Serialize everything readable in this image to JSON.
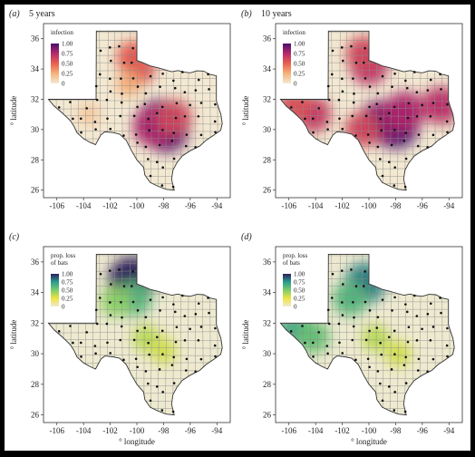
{
  "figure": {
    "background": "#000000",
    "panel_bg": "#ffffff",
    "plot_bg": "#f2f2f2"
  },
  "chart_data": [
    {
      "type": "heatmap",
      "panel": "a",
      "title": "5 years",
      "xlabel": "",
      "ylabel": "° latitude",
      "xticks": [
        "-106",
        "-104",
        "-102",
        "-100",
        "-98",
        "-96",
        "-94"
      ],
      "yticks": [
        "26",
        "28",
        "30",
        "32",
        "34",
        "36"
      ],
      "xlim": [
        -107,
        -93
      ],
      "ylim": [
        25.5,
        37
      ],
      "legend": {
        "title": "infection",
        "ticks": [
          "1.00",
          "0.75",
          "0.50",
          "0.25",
          "0"
        ],
        "placement": "top-left"
      },
      "colors": [
        "#f3e9d2",
        "#f6b27a",
        "#e8604e",
        "#b5296c",
        "#4a0f6b"
      ],
      "hotspots": [
        {
          "lon": -100.0,
          "lat": 34.4,
          "value": 0.55
        },
        {
          "lon": -99.9,
          "lat": 34.0,
          "value": 0.55
        },
        {
          "lon": -100.3,
          "lat": 34.8,
          "value": 0.5
        },
        {
          "lon": -100.6,
          "lat": 33.0,
          "value": 0.25
        },
        {
          "lon": -98.3,
          "lat": 30.4,
          "value": 1.0
        },
        {
          "lon": -97.8,
          "lat": 30.0,
          "value": 0.95
        },
        {
          "lon": -98.8,
          "lat": 30.2,
          "value": 0.75
        },
        {
          "lon": -97.2,
          "lat": 30.8,
          "value": 0.6
        },
        {
          "lon": -103.6,
          "lat": 31.0,
          "value": 0.15
        }
      ]
    },
    {
      "type": "heatmap",
      "panel": "b",
      "title": "10 years",
      "xlabel": "",
      "ylabel": "° latitude",
      "xticks": [
        "-106",
        "-104",
        "-102",
        "-100",
        "-98",
        "-96",
        "-94"
      ],
      "yticks": [
        "26",
        "28",
        "30",
        "32",
        "34",
        "36"
      ],
      "xlim": [
        -107,
        -93
      ],
      "ylim": [
        25.5,
        37
      ],
      "legend": {
        "title": "infection",
        "ticks": [
          "1.00",
          "0.75",
          "0.50",
          "0.25",
          "0"
        ],
        "placement": "top-left"
      },
      "colors": [
        "#f3e9d2",
        "#f6b27a",
        "#e8604e",
        "#b5296c",
        "#4a0f6b"
      ],
      "hotspots": [
        {
          "lon": -100.0,
          "lat": 34.2,
          "value": 0.7
        },
        {
          "lon": -100.4,
          "lat": 35.0,
          "value": 0.6
        },
        {
          "lon": -98.0,
          "lat": 30.3,
          "value": 1.0
        },
        {
          "lon": -99.2,
          "lat": 30.5,
          "value": 0.85
        },
        {
          "lon": -100.5,
          "lat": 30.0,
          "value": 0.6
        },
        {
          "lon": -97.3,
          "lat": 31.2,
          "value": 0.75
        },
        {
          "lon": -104.2,
          "lat": 31.0,
          "value": 0.65
        },
        {
          "lon": -105.6,
          "lat": 31.6,
          "value": 0.55
        },
        {
          "lon": -94.6,
          "lat": 31.6,
          "value": 0.7
        }
      ]
    },
    {
      "type": "heatmap",
      "panel": "c",
      "title": "",
      "xlabel": "° longitude",
      "ylabel": "° latitude",
      "xticks": [
        "-106",
        "-104",
        "-102",
        "-100",
        "-98",
        "-96",
        "-94"
      ],
      "yticks": [
        "26",
        "28",
        "30",
        "32",
        "34",
        "36"
      ],
      "xlim": [
        -107,
        -93
      ],
      "ylim": [
        25.5,
        37
      ],
      "legend": {
        "title": "prop. loss of bats",
        "ticks": [
          "1.00",
          "0.75",
          "0.50",
          "0.25",
          "0"
        ],
        "placement": "top-left"
      },
      "colors": [
        "#eeead0",
        "#f0e442",
        "#7ccd6a",
        "#2a9d8f",
        "#2d1e5a"
      ],
      "hotspots": [
        {
          "lon": -100.4,
          "lat": 34.8,
          "value": 1.0
        },
        {
          "lon": -100.2,
          "lat": 33.6,
          "value": 0.6
        },
        {
          "lon": -101.6,
          "lat": 33.4,
          "value": 0.45
        },
        {
          "lon": -99.3,
          "lat": 31.0,
          "value": 0.35
        },
        {
          "lon": -98.0,
          "lat": 30.2,
          "value": 0.3
        }
      ]
    },
    {
      "type": "heatmap",
      "panel": "d",
      "title": "",
      "xlabel": "° longitude",
      "ylabel": "° latitude",
      "xticks": [
        "-106",
        "-104",
        "-102",
        "-100",
        "-98",
        "-96",
        "-94"
      ],
      "yticks": [
        "26",
        "28",
        "30",
        "32",
        "34",
        "36"
      ],
      "xlim": [
        -107,
        -93
      ],
      "ylim": [
        25.5,
        37
      ],
      "legend": {
        "title": "prop. loss of bats",
        "ticks": [
          "1.00",
          "0.75",
          "0.50",
          "0.25",
          "0"
        ],
        "placement": "top-left"
      },
      "colors": [
        "#eeead0",
        "#f0e442",
        "#7ccd6a",
        "#2a9d8f",
        "#2d1e5a"
      ],
      "hotspots": [
        {
          "lon": -100.3,
          "lat": 34.6,
          "value": 0.8
        },
        {
          "lon": -101.4,
          "lat": 33.6,
          "value": 0.6
        },
        {
          "lon": -105.5,
          "lat": 31.6,
          "value": 0.65
        },
        {
          "lon": -104.2,
          "lat": 31.1,
          "value": 0.55
        },
        {
          "lon": -99.5,
          "lat": 31.0,
          "value": 0.35
        },
        {
          "lon": -97.8,
          "lat": 30.0,
          "value": 0.3
        }
      ]
    }
  ],
  "panel_labels": [
    "(a)",
    "(b)",
    "(c)",
    "(d)"
  ],
  "panel_titles": [
    "5 years",
    "10 years",
    "",
    ""
  ]
}
